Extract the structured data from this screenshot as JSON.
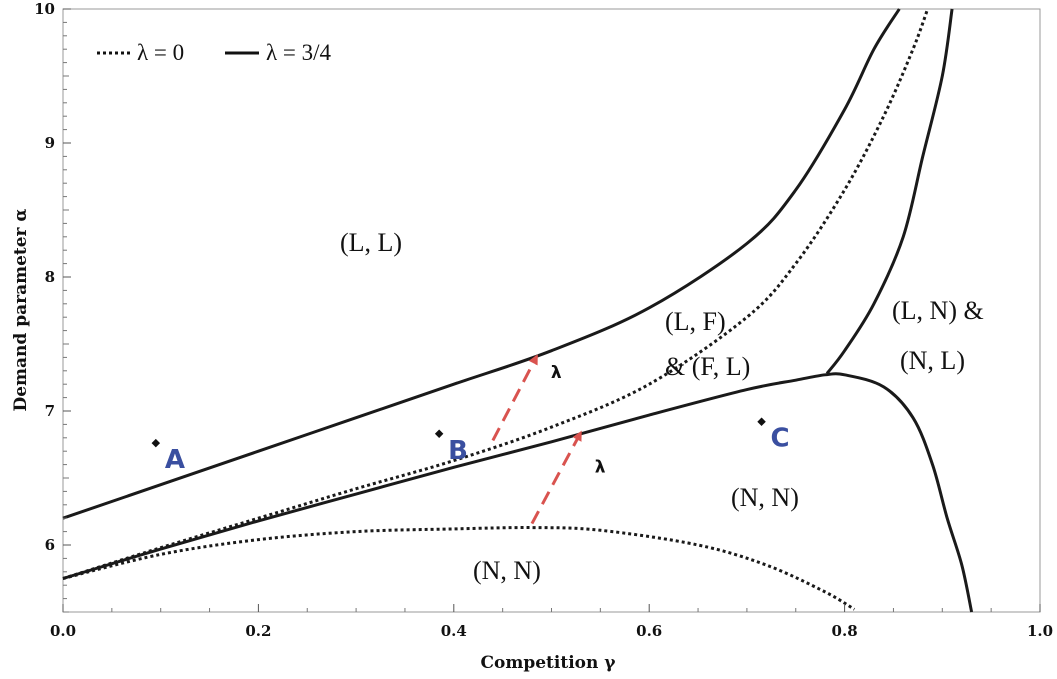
{
  "chart_data": {
    "type": "line",
    "xlabel": "Competition γ",
    "ylabel": "Demand parameter α",
    "xlim": [
      0,
      1
    ],
    "ylim": [
      5.5,
      10
    ],
    "x_ticks": [
      "0.0",
      "0.2",
      "0.4",
      "0.6",
      "0.8",
      "1.0"
    ],
    "y_ticks": [
      "6",
      "7",
      "8",
      "9",
      "10"
    ],
    "grid": false,
    "legend_position": "top-left",
    "legend": [
      {
        "label": "λ = 0",
        "style": "dotted"
      },
      {
        "label": "λ = 3/4",
        "style": "solid"
      }
    ],
    "series": [
      {
        "name": "λ = 3/4",
        "style": "solid",
        "points": [
          [
            0,
            6.2
          ],
          [
            0.1,
            6.45
          ],
          [
            0.2,
            6.7
          ],
          [
            0.3,
            6.95
          ],
          [
            0.4,
            7.2
          ],
          [
            0.5,
            7.45
          ],
          [
            0.6,
            7.77
          ],
          [
            0.7,
            8.25
          ],
          [
            0.75,
            8.65
          ],
          [
            0.8,
            9.25
          ],
          [
            0.83,
            9.7
          ],
          [
            0.856,
            10
          ]
        ]
      },
      {
        "name": "λ = 3/4",
        "style": "solid",
        "points": [
          [
            0,
            5.75
          ],
          [
            0.1,
            5.97
          ],
          [
            0.2,
            6.18
          ],
          [
            0.3,
            6.38
          ],
          [
            0.4,
            6.58
          ],
          [
            0.5,
            6.77
          ],
          [
            0.6,
            6.97
          ],
          [
            0.7,
            7.16
          ],
          [
            0.75,
            7.23
          ],
          [
            0.78,
            7.27
          ],
          [
            0.8,
            7.27
          ],
          [
            0.84,
            7.18
          ],
          [
            0.87,
            6.95
          ],
          [
            0.89,
            6.6
          ],
          [
            0.905,
            6.2
          ],
          [
            0.92,
            5.85
          ],
          [
            0.93,
            5.5
          ]
        ]
      },
      {
        "name": "λ = 3/4",
        "style": "solid",
        "points": [
          [
            0.782,
            7.28
          ],
          [
            0.8,
            7.45
          ],
          [
            0.83,
            7.8
          ],
          [
            0.86,
            8.3
          ],
          [
            0.88,
            8.9
          ],
          [
            0.9,
            9.5
          ],
          [
            0.91,
            10
          ]
        ]
      },
      {
        "name": "λ = 0",
        "style": "dotted",
        "points": [
          [
            0,
            5.75
          ],
          [
            0.1,
            5.98
          ],
          [
            0.2,
            6.2
          ],
          [
            0.3,
            6.42
          ],
          [
            0.4,
            6.63
          ],
          [
            0.5,
            6.88
          ],
          [
            0.6,
            7.2
          ],
          [
            0.7,
            7.7
          ],
          [
            0.75,
            8.1
          ],
          [
            0.8,
            8.65
          ],
          [
            0.84,
            9.2
          ],
          [
            0.87,
            9.7
          ],
          [
            0.885,
            10
          ]
        ]
      },
      {
        "name": "λ = 0",
        "style": "dotted",
        "points": [
          [
            0,
            5.75
          ],
          [
            0.1,
            5.93
          ],
          [
            0.2,
            6.04
          ],
          [
            0.3,
            6.1
          ],
          [
            0.4,
            6.12
          ],
          [
            0.48,
            6.13
          ],
          [
            0.55,
            6.11
          ],
          [
            0.65,
            6.0
          ],
          [
            0.72,
            5.85
          ],
          [
            0.78,
            5.65
          ],
          [
            0.81,
            5.52
          ]
        ]
      }
    ],
    "points": [
      {
        "label": "A",
        "x": 0.095,
        "y": 6.76
      },
      {
        "label": "B",
        "x": 0.385,
        "y": 6.83
      },
      {
        "label": "C",
        "x": 0.715,
        "y": 6.92
      }
    ],
    "arrows": [
      {
        "label": "λ",
        "from": [
          0.44,
          6.78
        ],
        "to": [
          0.485,
          7.41
        ]
      },
      {
        "label": "λ",
        "from": [
          0.48,
          6.16
        ],
        "to": [
          0.53,
          6.84
        ]
      }
    ],
    "regions": [
      {
        "text": "(L, L)"
      },
      {
        "text": "(L, F)"
      },
      {
        "text": "& (F, L)"
      },
      {
        "text": "(L, N) &"
      },
      {
        "text": "(N, L)"
      },
      {
        "text": "(N, N)"
      },
      {
        "text": "(N, N)"
      }
    ],
    "colors": {
      "curve": "#1a1a1a",
      "arrow": "#d9534f",
      "point_label": "#3a4fa0"
    }
  }
}
